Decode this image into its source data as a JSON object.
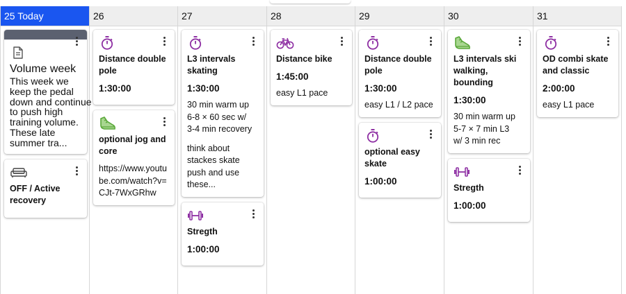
{
  "colors": {
    "today_header": "#1a56f0",
    "icon_purple": "#8e2fa3",
    "icon_green": "#5aa83a",
    "note_bar": "#5b6170"
  },
  "days": [
    {
      "label": "25 Today",
      "cards": [
        {
          "kind": "note",
          "icon": "note-icon",
          "title": "Volume week",
          "text": "This week we keep the pedal down and continue to push high training volume. These late summer tra..."
        },
        {
          "kind": "workout",
          "icon": "sofa-icon",
          "title": "OFF / Active recovery"
        }
      ]
    },
    {
      "label": "26",
      "cards": [
        {
          "kind": "workout",
          "icon": "stopwatch-icon",
          "title": "Distance double pole",
          "duration": "1:30:00"
        },
        {
          "kind": "workout",
          "icon": "shoe-icon",
          "title": "optional jog and core",
          "description": "https://www.youtube.com/watch?v=CJt-7WxGRhw"
        }
      ]
    },
    {
      "label": "27",
      "cards": [
        {
          "kind": "workout",
          "icon": "stopwatch-icon",
          "title": "L3 intervals skating",
          "duration": "1:30:00",
          "description": "30 min warm up\n6-8 × 60 sec w/\n3-4 min recovery",
          "description2": "think about\nstackes skate\npush and use\nthese..."
        },
        {
          "kind": "workout",
          "icon": "dumbbell-icon",
          "title": "Stregth",
          "duration": "1:00:00"
        }
      ]
    },
    {
      "label": "28",
      "cards": [
        {
          "kind": "workout",
          "icon": "bike-icon",
          "title": "Distance bike",
          "duration": "1:45:00",
          "description": "easy L1 pace"
        }
      ]
    },
    {
      "label": "29",
      "cards": [
        {
          "kind": "workout",
          "icon": "stopwatch-icon",
          "title": "Distance double pole",
          "duration": "1:30:00",
          "description": "easy L1 / L2 pace"
        },
        {
          "kind": "workout",
          "icon": "stopwatch-icon",
          "title": "optional easy skate",
          "duration": "1:00:00"
        }
      ]
    },
    {
      "label": "30",
      "cards": [
        {
          "kind": "workout",
          "icon": "shoe-icon",
          "title": "L3 intervals ski walking, bounding",
          "duration": "1:30:00",
          "description": "30 min warm up\n5-7 × 7 min L3\nw/ 3 min rec"
        },
        {
          "kind": "workout",
          "icon": "dumbbell-icon",
          "title": "Stregth",
          "duration": "1:00:00"
        }
      ]
    },
    {
      "label": "31",
      "cards": [
        {
          "kind": "workout",
          "icon": "stopwatch-icon",
          "title": "OD combi skate and classic",
          "duration": "2:00:00",
          "description": "easy L1 pace"
        }
      ]
    }
  ]
}
